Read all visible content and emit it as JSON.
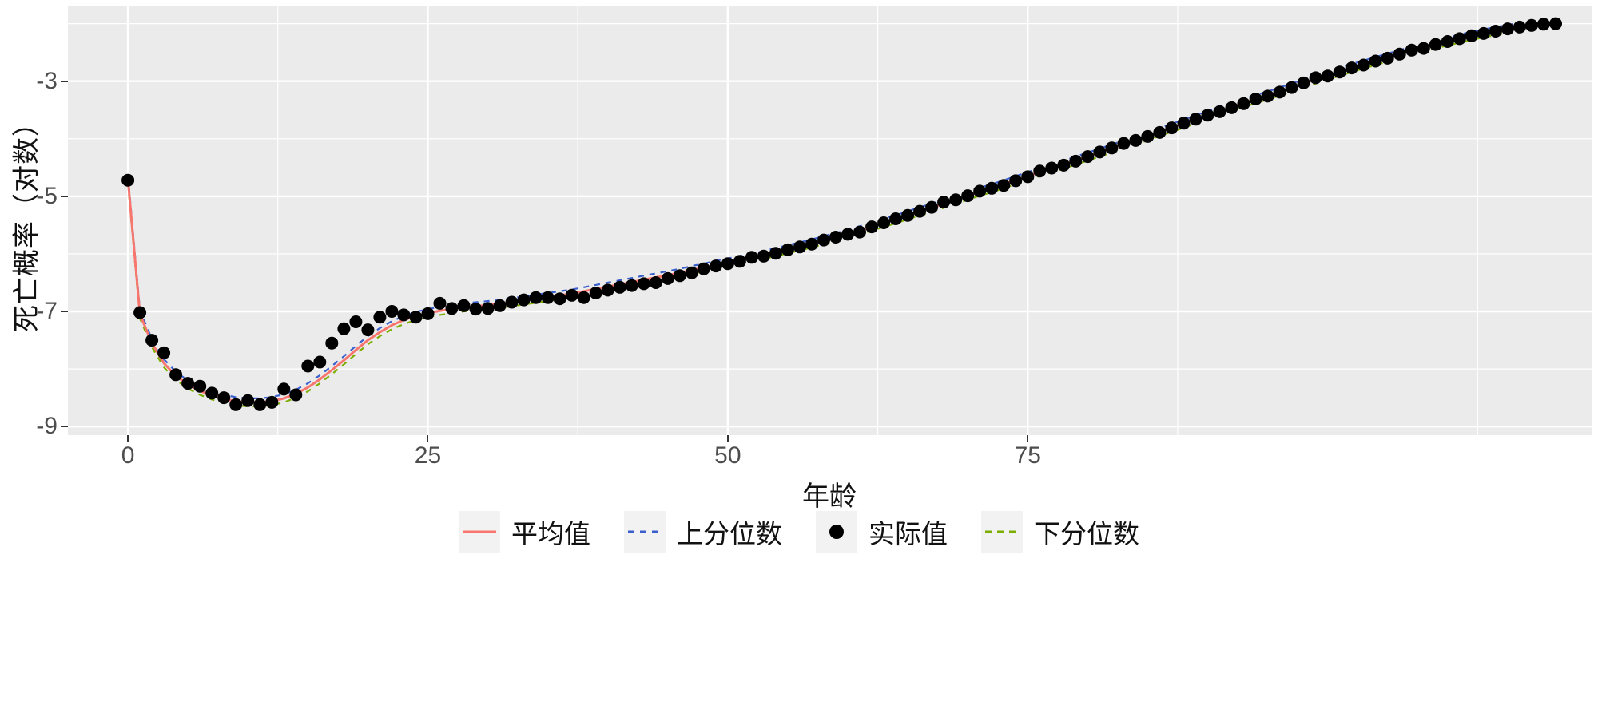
{
  "figure": {
    "background": "#FFFFFF"
  },
  "chart_data": {
    "type": "line",
    "title": "",
    "xlabel": "年龄",
    "ylabel": "死亡概率（对数）",
    "legend_position": "bottom",
    "panel_bg": "#EBEBEB",
    "grid_color": "#FFFFFF",
    "tick_mark_color": "#333333",
    "x_domain": [
      -5,
      122
    ],
    "y_domain": [
      -9.15,
      -1.7
    ],
    "x_ticks": [
      0,
      25,
      50,
      75
    ],
    "x_tick_labels": [
      "0",
      "25",
      "50",
      "75"
    ],
    "y_ticks": [
      -3,
      -5,
      -7,
      -9
    ],
    "y_tick_labels": [
      "-3",
      "-5",
      "-7",
      "-9"
    ],
    "x_minor": [
      12.5,
      37.5,
      62.5,
      87.5,
      112.5
    ],
    "y_minor": [
      -2,
      -4,
      -6,
      -8
    ],
    "ages": [
      0,
      1,
      2,
      3,
      4,
      5,
      6,
      7,
      8,
      9,
      10,
      11,
      12,
      13,
      14,
      15,
      16,
      17,
      18,
      19,
      20,
      21,
      22,
      23,
      24,
      25,
      26,
      27,
      28,
      29,
      30,
      31,
      32,
      33,
      34,
      35,
      36,
      37,
      38,
      39,
      40,
      41,
      42,
      43,
      44,
      45,
      46,
      47,
      48,
      49,
      50,
      51,
      52,
      53,
      54,
      55,
      56,
      57,
      58,
      59,
      60,
      61,
      62,
      63,
      64,
      65,
      66,
      67,
      68,
      69,
      70,
      71,
      72,
      73,
      74,
      75,
      76,
      77,
      78,
      79,
      80,
      81,
      82,
      83,
      84,
      85,
      86,
      87,
      88,
      89,
      90,
      91,
      92,
      93,
      94,
      95,
      96,
      97,
      98,
      99,
      100,
      101,
      102,
      103,
      104,
      105,
      106,
      107,
      108,
      109,
      110,
      111,
      112,
      113,
      114,
      115,
      116,
      117,
      118,
      119
    ],
    "series": [
      {
        "key": "mean",
        "name": "平均值",
        "kind": "line",
        "style": "solid",
        "color": "#F8766D",
        "values": [
          -4.7,
          -7.05,
          -7.55,
          -7.9,
          -8.12,
          -8.27,
          -8.38,
          -8.46,
          -8.52,
          -8.56,
          -8.58,
          -8.58,
          -8.56,
          -8.51,
          -8.43,
          -8.32,
          -8.18,
          -8.02,
          -7.85,
          -7.67,
          -7.5,
          -7.36,
          -7.24,
          -7.15,
          -7.08,
          -7.03,
          -6.99,
          -6.96,
          -6.93,
          -6.91,
          -6.89,
          -6.87,
          -6.84,
          -6.81,
          -6.78,
          -6.75,
          -6.72,
          -6.69,
          -6.65,
          -6.61,
          -6.57,
          -6.53,
          -6.49,
          -6.45,
          -6.41,
          -6.37,
          -6.33,
          -6.28,
          -6.24,
          -6.19,
          -6.15,
          -6.11,
          -6.07,
          -6.02,
          -5.97,
          -5.92,
          -5.87,
          -5.82,
          -5.76,
          -5.71,
          -5.65,
          -5.59,
          -5.53,
          -5.46,
          -5.4,
          -5.33,
          -5.26,
          -5.2,
          -5.13,
          -5.06,
          -4.99,
          -4.92,
          -4.86,
          -4.79,
          -4.72,
          -4.65,
          -4.58,
          -4.51,
          -4.45,
          -4.38,
          -4.31,
          -4.24,
          -4.17,
          -4.1,
          -4.03,
          -3.96,
          -3.88,
          -3.81,
          -3.74,
          -3.66,
          -3.59,
          -3.52,
          -3.45,
          -3.38,
          -3.31,
          -3.25,
          -3.18,
          -3.11,
          -3.04,
          -2.97,
          -2.9,
          -2.84,
          -2.77,
          -2.71,
          -2.65,
          -2.59,
          -2.53,
          -2.47,
          -2.42,
          -2.36,
          -2.31,
          -2.26,
          -2.21,
          -2.17,
          -2.13,
          -2.09,
          -2.06,
          -2.03,
          -2.01,
          -1.99
        ]
      },
      {
        "key": "upper",
        "name": "上分位数",
        "kind": "line",
        "style": "dashed",
        "color": "#3A5FCD",
        "values": [
          -4.63,
          -6.98,
          -7.48,
          -7.83,
          -8.05,
          -8.2,
          -8.31,
          -8.39,
          -8.45,
          -8.49,
          -8.51,
          -8.51,
          -8.49,
          -8.44,
          -8.36,
          -8.25,
          -8.11,
          -7.95,
          -7.78,
          -7.6,
          -7.43,
          -7.29,
          -7.17,
          -7.08,
          -7.01,
          -6.96,
          -6.92,
          -6.89,
          -6.86,
          -6.84,
          -6.82,
          -6.8,
          -6.77,
          -6.74,
          -6.71,
          -6.68,
          -6.65,
          -6.62,
          -6.58,
          -6.54,
          -6.5,
          -6.46,
          -6.42,
          -6.38,
          -6.34,
          -6.3,
          -6.26,
          -6.21,
          -6.17,
          -6.12,
          -6.08,
          -6.04,
          -6.0,
          -5.95,
          -5.9,
          -5.85,
          -5.8,
          -5.75,
          -5.69,
          -5.64,
          -5.58,
          -5.52,
          -5.46,
          -5.39,
          -5.33,
          -5.26,
          -5.19,
          -5.13,
          -5.06,
          -4.99,
          -4.92,
          -4.85,
          -4.79,
          -4.72,
          -4.65,
          -4.58,
          -4.51,
          -4.44,
          -4.38,
          -4.31,
          -4.24,
          -4.17,
          -4.1,
          -4.03,
          -3.96,
          -3.89,
          -3.81,
          -3.74,
          -3.67,
          -3.59,
          -3.52,
          -3.45,
          -3.38,
          -3.31,
          -3.24,
          -3.18,
          -3.11,
          -3.04,
          -2.97,
          -2.9,
          -2.83,
          -2.77,
          -2.7,
          -2.64,
          -2.58,
          -2.52,
          -2.46,
          -2.4,
          -2.35,
          -2.29,
          -2.24,
          -2.19,
          -2.14,
          -2.1,
          -2.06,
          -2.02,
          -1.99,
          -1.96,
          -1.94,
          -1.92
        ]
      },
      {
        "key": "actual",
        "name": "实际值",
        "kind": "scatter",
        "style": "point",
        "color": "#000000",
        "values": [
          -4.72,
          -7.02,
          -7.5,
          -7.72,
          -8.1,
          -8.25,
          -8.3,
          -8.42,
          -8.5,
          -8.62,
          -8.55,
          -8.62,
          -8.58,
          -8.35,
          -8.45,
          -7.95,
          -7.88,
          -7.55,
          -7.3,
          -7.18,
          -7.32,
          -7.1,
          -7.0,
          -7.06,
          -7.1,
          -7.04,
          -6.86,
          -6.95,
          -6.9,
          -6.96,
          -6.95,
          -6.9,
          -6.84,
          -6.8,
          -6.76,
          -6.76,
          -6.78,
          -6.72,
          -6.76,
          -6.68,
          -6.63,
          -6.58,
          -6.55,
          -6.52,
          -6.5,
          -6.43,
          -6.38,
          -6.33,
          -6.26,
          -6.21,
          -6.17,
          -6.13,
          -6.06,
          -6.04,
          -5.99,
          -5.93,
          -5.88,
          -5.83,
          -5.76,
          -5.71,
          -5.66,
          -5.62,
          -5.53,
          -5.46,
          -5.39,
          -5.33,
          -5.26,
          -5.19,
          -5.1,
          -5.06,
          -4.99,
          -4.91,
          -4.86,
          -4.81,
          -4.73,
          -4.66,
          -4.56,
          -4.51,
          -4.46,
          -4.39,
          -4.31,
          -4.23,
          -4.16,
          -4.08,
          -4.03,
          -3.96,
          -3.89,
          -3.81,
          -3.73,
          -3.66,
          -3.59,
          -3.53,
          -3.46,
          -3.39,
          -3.31,
          -3.26,
          -3.19,
          -3.11,
          -3.03,
          -2.94,
          -2.91,
          -2.84,
          -2.77,
          -2.72,
          -2.65,
          -2.6,
          -2.53,
          -2.46,
          -2.43,
          -2.36,
          -2.31,
          -2.26,
          -2.21,
          -2.17,
          -2.13,
          -2.09,
          -2.06,
          -2.03,
          -2.01,
          -2.0
        ]
      },
      {
        "key": "lower",
        "name": "下分位数",
        "kind": "line",
        "style": "dashed",
        "color": "#7CAE00",
        "values": [
          -4.77,
          -7.12,
          -7.62,
          -7.97,
          -8.19,
          -8.34,
          -8.45,
          -8.53,
          -8.59,
          -8.63,
          -8.65,
          -8.65,
          -8.63,
          -8.58,
          -8.5,
          -8.39,
          -8.25,
          -8.09,
          -7.92,
          -7.74,
          -7.57,
          -7.43,
          -7.31,
          -7.22,
          -7.15,
          -7.1,
          -7.06,
          -7.03,
          -7.0,
          -6.98,
          -6.96,
          -6.94,
          -6.91,
          -6.88,
          -6.85,
          -6.82,
          -6.79,
          -6.76,
          -6.72,
          -6.68,
          -6.64,
          -6.6,
          -6.56,
          -6.52,
          -6.48,
          -6.44,
          -6.4,
          -6.35,
          -6.31,
          -6.26,
          -6.22,
          -6.18,
          -6.14,
          -6.09,
          -6.04,
          -5.99,
          -5.94,
          -5.89,
          -5.83,
          -5.78,
          -5.72,
          -5.66,
          -5.6,
          -5.53,
          -5.47,
          -5.4,
          -5.33,
          -5.27,
          -5.2,
          -5.13,
          -5.06,
          -4.99,
          -4.93,
          -4.86,
          -4.79,
          -4.72,
          -4.65,
          -4.58,
          -4.52,
          -4.45,
          -4.38,
          -4.31,
          -4.24,
          -4.17,
          -4.1,
          -4.03,
          -3.95,
          -3.88,
          -3.81,
          -3.73,
          -3.66,
          -3.59,
          -3.52,
          -3.45,
          -3.38,
          -3.32,
          -3.25,
          -3.18,
          -3.11,
          -3.04,
          -2.97,
          -2.91,
          -2.84,
          -2.78,
          -2.72,
          -2.66,
          -2.6,
          -2.54,
          -2.49,
          -2.43,
          -2.38,
          -2.33,
          -2.28,
          -2.24,
          -2.2,
          -2.16,
          -2.13,
          -2.1,
          -2.08,
          -2.06
        ]
      }
    ]
  }
}
